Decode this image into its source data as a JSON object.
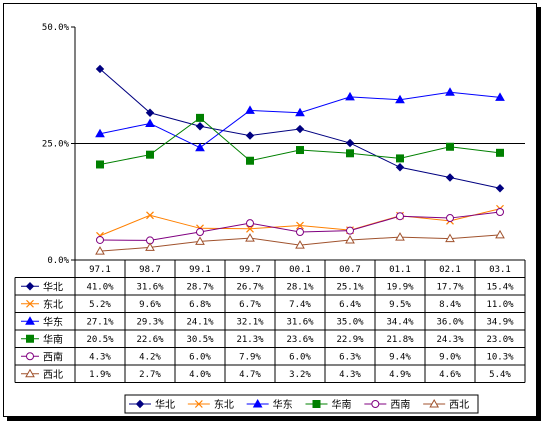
{
  "chart_data": {
    "type": "line",
    "title": "",
    "xlabel": "",
    "ylabel": "",
    "ylim": [
      0,
      50
    ],
    "yticks": [
      "0.0%",
      "25.0%",
      "50.0%"
    ],
    "grid": false,
    "reference_line_y": 25,
    "legend_position": "bottom",
    "data_table": true,
    "categories": [
      "97.1",
      "98.7",
      "99.1",
      "99.7",
      "00.1",
      "00.7",
      "01.1",
      "02.1",
      "03.1"
    ],
    "series": [
      {
        "name": "华北",
        "marker": "diamond",
        "color": "#000080",
        "values": [
          41.0,
          31.6,
          28.7,
          26.7,
          28.1,
          25.1,
          19.9,
          17.7,
          15.4
        ],
        "labels": [
          "41.0%",
          "31.6%",
          "28.7%",
          "26.7%",
          "28.1%",
          "25.1%",
          "19.9%",
          "17.7%",
          "15.4%"
        ]
      },
      {
        "name": "东北",
        "marker": "x",
        "color": "#FF8000",
        "values": [
          5.2,
          9.6,
          6.8,
          6.7,
          7.4,
          6.4,
          9.5,
          8.4,
          11.0
        ],
        "labels": [
          "5.2%",
          "9.6%",
          "6.8%",
          "6.7%",
          "7.4%",
          "6.4%",
          "9.5%",
          "8.4%",
          "11.0%"
        ]
      },
      {
        "name": "华东",
        "marker": "triangle",
        "color": "#0000FF",
        "values": [
          27.1,
          29.3,
          24.1,
          32.1,
          31.6,
          35.0,
          34.4,
          36.0,
          34.9
        ],
        "labels": [
          "27.1%",
          "29.3%",
          "24.1%",
          "32.1%",
          "31.6%",
          "35.0%",
          "34.4%",
          "36.0%",
          "34.9%"
        ]
      },
      {
        "name": "华南",
        "marker": "square",
        "color": "#008000",
        "values": [
          20.5,
          22.6,
          30.5,
          21.3,
          23.6,
          22.9,
          21.8,
          24.3,
          23.0
        ],
        "labels": [
          "20.5%",
          "22.6%",
          "30.5%",
          "21.3%",
          "23.6%",
          "22.9%",
          "21.8%",
          "24.3%",
          "23.0%"
        ]
      },
      {
        "name": "西南",
        "marker": "circle",
        "color": "#800080",
        "values": [
          4.3,
          4.2,
          6.0,
          7.9,
          6.0,
          6.3,
          9.4,
          9.0,
          10.3
        ],
        "labels": [
          "4.3%",
          "4.2%",
          "6.0%",
          "7.9%",
          "6.0%",
          "6.3%",
          "9.4%",
          "9.0%",
          "10.3%"
        ]
      },
      {
        "name": "西北",
        "marker": "triangle-open",
        "color": "#A0522D",
        "values": [
          1.9,
          2.7,
          4.0,
          4.7,
          3.2,
          4.3,
          4.9,
          4.6,
          5.4
        ],
        "labels": [
          "1.9%",
          "2.7%",
          "4.0%",
          "4.7%",
          "3.2%",
          "4.3%",
          "4.9%",
          "4.6%",
          "5.4%"
        ]
      }
    ]
  }
}
